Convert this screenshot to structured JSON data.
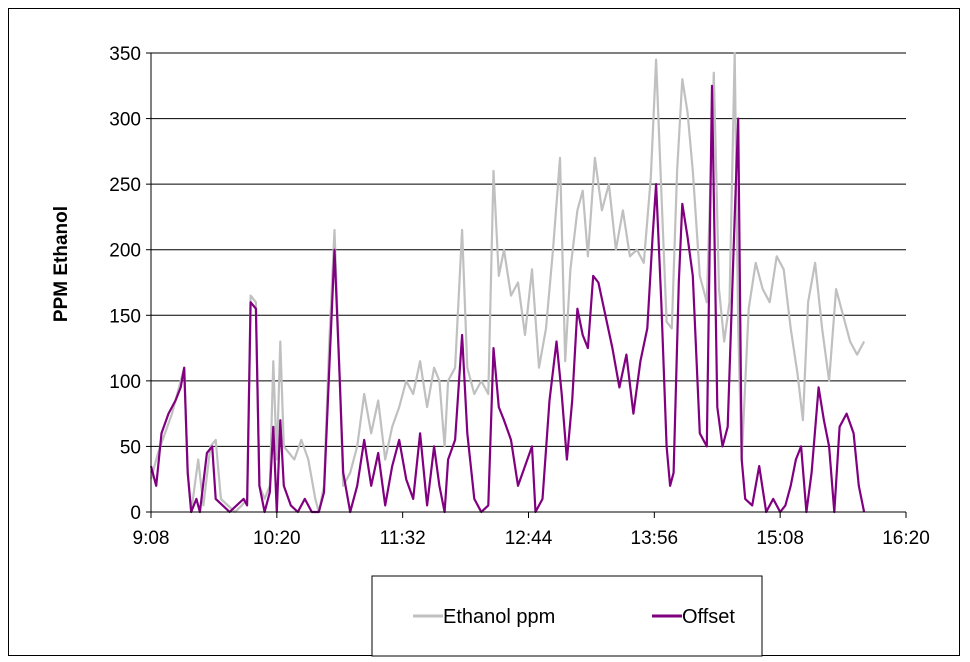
{
  "chart_data": {
    "type": "line",
    "title": "",
    "xlabel": "",
    "ylabel": "PPM Ethanol",
    "xlim": [
      "9:08",
      "16:20"
    ],
    "ylim": [
      0,
      350
    ],
    "x_ticks": [
      "9:08",
      "10:20",
      "11:32",
      "12:44",
      "13:56",
      "15:08",
      "16:20"
    ],
    "y_ticks": [
      "0",
      "50",
      "100",
      "150",
      "200",
      "250",
      "300",
      "350"
    ],
    "grid": "horizontal",
    "legend_position": "bottom",
    "series": [
      {
        "name": "Ethanol ppm",
        "color": "#c0c0c0",
        "points": [
          [
            "9:08",
            25
          ],
          [
            "9:12",
            45
          ],
          [
            "9:16",
            60
          ],
          [
            "9:20",
            75
          ],
          [
            "9:24",
            95
          ],
          [
            "9:27",
            110
          ],
          [
            "9:29",
            30
          ],
          [
            "9:31",
            0
          ],
          [
            "9:35",
            40
          ],
          [
            "9:38",
            5
          ],
          [
            "9:42",
            50
          ],
          [
            "9:45",
            55
          ],
          [
            "9:48",
            10
          ],
          [
            "9:52",
            5
          ],
          [
            "9:56",
            0
          ],
          [
            "10:00",
            5
          ],
          [
            "10:03",
            10
          ],
          [
            "10:05",
            165
          ],
          [
            "10:08",
            160
          ],
          [
            "10:10",
            20
          ],
          [
            "10:13",
            10
          ],
          [
            "10:16",
            20
          ],
          [
            "10:18",
            115
          ],
          [
            "10:20",
            40
          ],
          [
            "10:22",
            130
          ],
          [
            "10:24",
            50
          ],
          [
            "10:27",
            45
          ],
          [
            "10:30",
            40
          ],
          [
            "10:34",
            55
          ],
          [
            "10:38",
            40
          ],
          [
            "10:42",
            10
          ],
          [
            "10:44",
            0
          ],
          [
            "10:47",
            20
          ],
          [
            "10:50",
            130
          ],
          [
            "10:53",
            215
          ],
          [
            "10:56",
            100
          ],
          [
            "10:58",
            20
          ],
          [
            "11:02",
            30
          ],
          [
            "11:06",
            50
          ],
          [
            "11:10",
            90
          ],
          [
            "11:14",
            60
          ],
          [
            "11:18",
            85
          ],
          [
            "11:22",
            40
          ],
          [
            "11:26",
            65
          ],
          [
            "11:30",
            80
          ],
          [
            "11:34",
            100
          ],
          [
            "11:38",
            90
          ],
          [
            "11:42",
            115
          ],
          [
            "11:46",
            80
          ],
          [
            "11:50",
            110
          ],
          [
            "11:53",
            100
          ],
          [
            "11:56",
            50
          ],
          [
            "11:58",
            100
          ],
          [
            "12:02",
            110
          ],
          [
            "12:06",
            215
          ],
          [
            "12:09",
            110
          ],
          [
            "12:13",
            90
          ],
          [
            "12:17",
            100
          ],
          [
            "12:21",
            90
          ],
          [
            "12:24",
            260
          ],
          [
            "12:27",
            180
          ],
          [
            "12:30",
            200
          ],
          [
            "12:34",
            165
          ],
          [
            "12:38",
            175
          ],
          [
            "12:42",
            135
          ],
          [
            "12:46",
            185
          ],
          [
            "12:50",
            110
          ],
          [
            "12:54",
            140
          ],
          [
            "12:58",
            200
          ],
          [
            "13:02",
            270
          ],
          [
            "13:05",
            115
          ],
          [
            "13:08",
            185
          ],
          [
            "13:12",
            230
          ],
          [
            "13:15",
            245
          ],
          [
            "13:18",
            195
          ],
          [
            "13:22",
            270
          ],
          [
            "13:26",
            230
          ],
          [
            "13:30",
            250
          ],
          [
            "13:34",
            200
          ],
          [
            "13:38",
            230
          ],
          [
            "13:42",
            195
          ],
          [
            "13:46",
            200
          ],
          [
            "13:50",
            190
          ],
          [
            "13:54",
            255
          ],
          [
            "13:57",
            345
          ],
          [
            "14:00",
            245
          ],
          [
            "14:03",
            145
          ],
          [
            "14:06",
            140
          ],
          [
            "14:09",
            260
          ],
          [
            "14:12",
            330
          ],
          [
            "14:15",
            305
          ],
          [
            "14:18",
            260
          ],
          [
            "14:22",
            180
          ],
          [
            "14:26",
            160
          ],
          [
            "14:30",
            335
          ],
          [
            "14:33",
            170
          ],
          [
            "14:36",
            130
          ],
          [
            "14:39",
            160
          ],
          [
            "14:42",
            350
          ],
          [
            "14:44",
            140
          ],
          [
            "14:46",
            40
          ],
          [
            "14:50",
            155
          ],
          [
            "14:54",
            190
          ],
          [
            "14:58",
            170
          ],
          [
            "15:02",
            160
          ],
          [
            "15:06",
            195
          ],
          [
            "15:10",
            185
          ],
          [
            "15:14",
            140
          ],
          [
            "15:18",
            105
          ],
          [
            "15:21",
            70
          ],
          [
            "15:24",
            160
          ],
          [
            "15:28",
            190
          ],
          [
            "15:32",
            140
          ],
          [
            "15:36",
            100
          ],
          [
            "15:40",
            170
          ],
          [
            "15:44",
            150
          ],
          [
            "15:48",
            130
          ],
          [
            "15:52",
            120
          ],
          [
            "15:56",
            130
          ]
        ]
      },
      {
        "name": "Offset",
        "color": "#800080",
        "points": [
          [
            "9:08",
            35
          ],
          [
            "9:11",
            20
          ],
          [
            "9:14",
            60
          ],
          [
            "9:18",
            75
          ],
          [
            "9:22",
            85
          ],
          [
            "9:25",
            95
          ],
          [
            "9:27",
            110
          ],
          [
            "9:29",
            30
          ],
          [
            "9:31",
            0
          ],
          [
            "9:34",
            10
          ],
          [
            "9:36",
            0
          ],
          [
            "9:40",
            45
          ],
          [
            "9:43",
            50
          ],
          [
            "9:45",
            10
          ],
          [
            "9:49",
            5
          ],
          [
            "9:53",
            0
          ],
          [
            "9:57",
            5
          ],
          [
            "10:01",
            10
          ],
          [
            "10:03",
            5
          ],
          [
            "10:05",
            160
          ],
          [
            "10:08",
            155
          ],
          [
            "10:10",
            20
          ],
          [
            "10:13",
            0
          ],
          [
            "10:16",
            15
          ],
          [
            "10:18",
            65
          ],
          [
            "10:20",
            0
          ],
          [
            "10:22",
            70
          ],
          [
            "10:24",
            20
          ],
          [
            "10:28",
            5
          ],
          [
            "10:32",
            0
          ],
          [
            "10:36",
            10
          ],
          [
            "10:40",
            0
          ],
          [
            "10:44",
            0
          ],
          [
            "10:47",
            15
          ],
          [
            "10:50",
            110
          ],
          [
            "10:53",
            200
          ],
          [
            "10:56",
            100
          ],
          [
            "10:58",
            30
          ],
          [
            "11:02",
            0
          ],
          [
            "11:06",
            20
          ],
          [
            "11:10",
            55
          ],
          [
            "11:14",
            20
          ],
          [
            "11:18",
            45
          ],
          [
            "11:22",
            5
          ],
          [
            "11:26",
            35
          ],
          [
            "11:30",
            55
          ],
          [
            "11:34",
            25
          ],
          [
            "11:38",
            10
          ],
          [
            "11:42",
            60
          ],
          [
            "11:46",
            5
          ],
          [
            "11:50",
            50
          ],
          [
            "11:53",
            20
          ],
          [
            "11:56",
            0
          ],
          [
            "11:58",
            40
          ],
          [
            "12:02",
            55
          ],
          [
            "12:06",
            135
          ],
          [
            "12:09",
            60
          ],
          [
            "12:13",
            10
          ],
          [
            "12:17",
            0
          ],
          [
            "12:21",
            5
          ],
          [
            "12:24",
            125
          ],
          [
            "12:27",
            80
          ],
          [
            "12:30",
            70
          ],
          [
            "12:34",
            55
          ],
          [
            "12:38",
            20
          ],
          [
            "12:42",
            35
          ],
          [
            "12:46",
            50
          ],
          [
            "12:48",
            0
          ],
          [
            "12:52",
            10
          ],
          [
            "12:56",
            85
          ],
          [
            "13:00",
            130
          ],
          [
            "13:03",
            90
          ],
          [
            "13:06",
            40
          ],
          [
            "13:09",
            85
          ],
          [
            "13:12",
            155
          ],
          [
            "13:15",
            135
          ],
          [
            "13:18",
            125
          ],
          [
            "13:21",
            180
          ],
          [
            "13:24",
            175
          ],
          [
            "13:28",
            150
          ],
          [
            "13:32",
            125
          ],
          [
            "13:36",
            95
          ],
          [
            "13:40",
            120
          ],
          [
            "13:44",
            75
          ],
          [
            "13:48",
            115
          ],
          [
            "13:52",
            140
          ],
          [
            "13:55",
            210
          ],
          [
            "13:57",
            250
          ],
          [
            "14:00",
            160
          ],
          [
            "14:03",
            50
          ],
          [
            "14:05",
            20
          ],
          [
            "14:07",
            30
          ],
          [
            "14:10",
            175
          ],
          [
            "14:12",
            235
          ],
          [
            "14:15",
            210
          ],
          [
            "14:18",
            180
          ],
          [
            "14:22",
            60
          ],
          [
            "14:26",
            50
          ],
          [
            "14:29",
            325
          ],
          [
            "14:32",
            80
          ],
          [
            "14:35",
            50
          ],
          [
            "14:38",
            65
          ],
          [
            "14:42",
            225
          ],
          [
            "14:44",
            300
          ],
          [
            "14:46",
            40
          ],
          [
            "14:48",
            10
          ],
          [
            "14:52",
            5
          ],
          [
            "14:56",
            35
          ],
          [
            "15:00",
            0
          ],
          [
            "15:04",
            10
          ],
          [
            "15:08",
            0
          ],
          [
            "15:11",
            5
          ],
          [
            "15:14",
            20
          ],
          [
            "15:17",
            40
          ],
          [
            "15:20",
            50
          ],
          [
            "15:23",
            0
          ],
          [
            "15:26",
            30
          ],
          [
            "15:30",
            95
          ],
          [
            "15:33",
            70
          ],
          [
            "15:36",
            50
          ],
          [
            "15:39",
            0
          ],
          [
            "15:42",
            65
          ],
          [
            "15:46",
            75
          ],
          [
            "15:50",
            60
          ],
          [
            "15:53",
            20
          ],
          [
            "15:56",
            0
          ]
        ]
      }
    ]
  }
}
